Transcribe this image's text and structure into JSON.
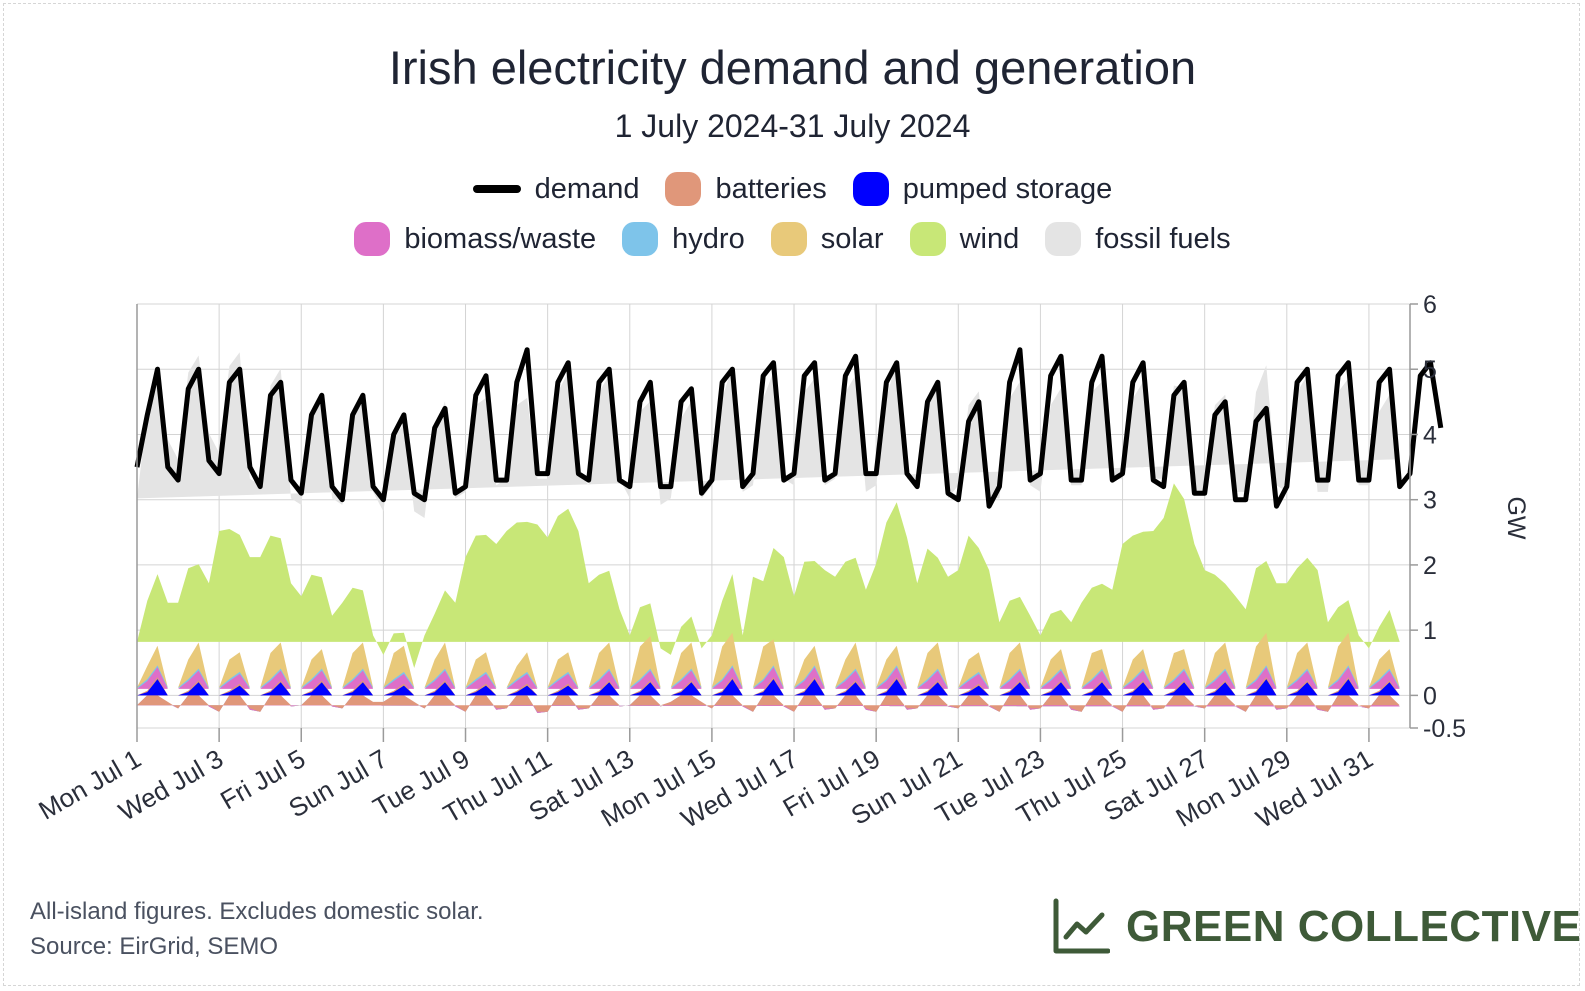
{
  "header": {
    "title": "Irish electricity demand and generation",
    "subtitle": "1 July 2024-31 July 2024"
  },
  "legend": [
    {
      "label": "demand",
      "color": "#000000",
      "kind": "line"
    },
    {
      "label": "batteries",
      "color": "#e0977a",
      "kind": "area"
    },
    {
      "label": "pumped storage",
      "color": "#0000ff",
      "kind": "area"
    },
    {
      "label": "biomass/waste",
      "color": "#de6fc8",
      "kind": "area"
    },
    {
      "label": "hydro",
      "color": "#7ec4ea",
      "kind": "area"
    },
    {
      "label": "solar",
      "color": "#e8c97a",
      "kind": "area"
    },
    {
      "label": "wind",
      "color": "#c8e777",
      "kind": "area"
    },
    {
      "label": "fossil fuels",
      "color": "#e4e4e4",
      "kind": "area"
    }
  ],
  "footer": {
    "note": "All-island figures. Excludes domestic solar.",
    "source": "Source: EirGrid, SEMO",
    "brand": "GREEN COLLECTIVE",
    "brand_icon": "line-chart-icon",
    "brand_color": "#3e5a38"
  },
  "chart_data": {
    "type": "area",
    "xlabel": "",
    "ylabel": "GW",
    "ylim": [
      -0.5,
      6
    ],
    "yticks": [
      -0.5,
      0,
      1,
      2,
      3,
      4,
      5,
      6
    ],
    "y_axis_side": "right",
    "grid": true,
    "legend_position": "top-center",
    "x_range": [
      "2024-07-01",
      "2024-08-01"
    ],
    "x_ticks": [
      {
        "date": "2024-07-01",
        "label": "Mon Jul 1"
      },
      {
        "date": "2024-07-03",
        "label": "Wed Jul 3"
      },
      {
        "date": "2024-07-05",
        "label": "Fri Jul 5"
      },
      {
        "date": "2024-07-07",
        "label": "Sun Jul 7"
      },
      {
        "date": "2024-07-09",
        "label": "Tue Jul 9"
      },
      {
        "date": "2024-07-11",
        "label": "Thu Jul 11"
      },
      {
        "date": "2024-07-13",
        "label": "Sat Jul 13"
      },
      {
        "date": "2024-07-15",
        "label": "Mon Jul 15"
      },
      {
        "date": "2024-07-17",
        "label": "Wed Jul 17"
      },
      {
        "date": "2024-07-19",
        "label": "Fri Jul 19"
      },
      {
        "date": "2024-07-21",
        "label": "Sun Jul 21"
      },
      {
        "date": "2024-07-23",
        "label": "Tue Jul 23"
      },
      {
        "date": "2024-07-25",
        "label": "Thu Jul 25"
      },
      {
        "date": "2024-07-27",
        "label": "Sat Jul 27"
      },
      {
        "date": "2024-07-29",
        "label": "Mon Jul 29"
      },
      {
        "date": "2024-07-31",
        "label": "Wed Jul 31"
      }
    ],
    "time_step": "6h",
    "series": [
      {
        "name": "demand",
        "values": [
          3.5,
          4.3,
          5.0,
          3.5,
          3.3,
          4.7,
          5.0,
          3.6,
          3.4,
          4.8,
          5.0,
          3.5,
          3.2,
          4.6,
          4.8,
          3.3,
          3.1,
          4.3,
          4.6,
          3.2,
          3.0,
          4.3,
          4.6,
          3.2,
          3.0,
          4.0,
          4.3,
          3.1,
          3.0,
          4.1,
          4.4,
          3.1,
          3.2,
          4.6,
          4.9,
          3.3,
          3.3,
          4.8,
          5.3,
          3.4,
          3.4,
          4.8,
          5.1,
          3.4,
          3.3,
          4.8,
          5.0,
          3.3,
          3.2,
          4.5,
          4.8,
          3.2,
          3.2,
          4.5,
          4.7,
          3.1,
          3.3,
          4.8,
          5.0,
          3.2,
          3.4,
          4.9,
          5.1,
          3.3,
          3.4,
          4.9,
          5.1,
          3.3,
          3.4,
          4.9,
          5.2,
          3.4,
          3.4,
          4.8,
          5.1,
          3.4,
          3.2,
          4.5,
          4.8,
          3.1,
          3.0,
          4.2,
          4.5,
          2.9,
          3.2,
          4.8,
          5.3,
          3.3,
          3.4,
          4.9,
          5.2,
          3.3,
          3.3,
          4.8,
          5.2,
          3.3,
          3.4,
          4.8,
          5.1,
          3.3,
          3.2,
          4.6,
          4.8,
          3.1,
          3.1,
          4.3,
          4.5,
          3.0,
          3.0,
          4.2,
          4.4,
          2.9,
          3.2,
          4.8,
          5.0,
          3.3,
          3.3,
          4.9,
          5.1,
          3.3,
          3.3,
          4.8,
          5.0,
          3.2,
          3.4,
          4.9,
          5.1,
          4.1
        ]
      },
      {
        "name": "fossil fuels",
        "values": [
          2.2,
          2.9,
          3.2,
          2.5,
          2.2,
          3.0,
          3.2,
          2.3,
          1.2,
          2.5,
          2.8,
          1.2,
          1.1,
          2.3,
          2.6,
          1.3,
          1.4,
          2.4,
          2.7,
          1.8,
          1.5,
          2.6,
          2.9,
          2.2,
          2.2,
          3.0,
          3.2,
          2.4,
          1.8,
          2.8,
          2.9,
          1.6,
          1.0,
          2.0,
          2.1,
          0.9,
          0.8,
          1.8,
          1.9,
          0.7,
          0.9,
          1.9,
          2.1,
          0.9,
          1.5,
          2.8,
          3.0,
          2.0,
          2.1,
          3.0,
          3.1,
          2.2,
          2.4,
          3.2,
          3.3,
          2.3,
          2.3,
          3.1,
          3.2,
          2.2,
          1.4,
          2.8,
          2.7,
          1.2,
          1.7,
          2.6,
          2.8,
          1.3,
          1.5,
          2.6,
          2.8,
          1.5,
          1.2,
          1.9,
          2.2,
          0.9,
          1.5,
          2.3,
          2.6,
          1.2,
          1.3,
          2.0,
          2.4,
          1.1,
          1.9,
          3.1,
          3.3,
          2.0,
          2.2,
          3.2,
          3.4,
          2.1,
          1.8,
          3.0,
          3.1,
          1.7,
          1.0,
          2.1,
          2.3,
          0.8,
          0.6,
          1.5,
          1.7,
          0.8,
          1.2,
          2.6,
          2.9,
          1.6,
          1.8,
          2.7,
          3.0,
          1.5,
          1.4,
          2.7,
          2.8,
          1.2,
          2.0,
          3.3,
          3.4,
          2.3,
          2.5,
          3.3,
          3.3,
          2.8
        ]
      },
      {
        "name": "wind",
        "values": [
          0.7,
          1.0,
          1.1,
          1.3,
          1.3,
          1.4,
          1.2,
          1.6,
          2.4,
          2.0,
          1.8,
          2.0,
          2.0,
          1.8,
          1.6,
          1.6,
          1.4,
          1.3,
          1.1,
          1.1,
          1.3,
          1.0,
          0.8,
          0.8,
          0.5,
          0.3,
          0.2,
          0.3,
          0.8,
          0.7,
          0.8,
          1.3,
          2.0,
          1.9,
          1.8,
          2.2,
          2.4,
          2.2,
          2.0,
          2.5,
          2.3,
          2.2,
          2.2,
          2.4,
          1.6,
          1.2,
          1.1,
          1.2,
          0.8,
          0.6,
          0.5,
          0.6,
          0.5,
          0.4,
          0.4,
          0.6,
          0.8,
          0.7,
          0.9,
          0.8,
          1.7,
          1.0,
          1.4,
          2.0,
          1.4,
          1.5,
          1.3,
          1.8,
          1.7,
          1.5,
          1.3,
          1.5,
          1.9,
          2.1,
          2.2,
          2.3,
          1.6,
          1.6,
          1.3,
          1.7,
          1.8,
          1.9,
          1.6,
          1.8,
          1.0,
          0.8,
          0.7,
          1.1,
          0.8,
          0.7,
          0.6,
          1.0,
          1.3,
          1.0,
          1.0,
          1.5,
          2.2,
          1.9,
          1.8,
          2.4,
          2.6,
          2.6,
          2.3,
          2.2,
          1.8,
          1.2,
          0.9,
          1.4,
          1.2,
          1.2,
          1.1,
          1.6,
          1.6,
          1.3,
          1.3,
          1.8,
          1.0,
          0.6,
          0.5,
          0.8,
          0.6,
          0.5,
          0.6,
          0.7
        ]
      },
      {
        "name": "solar",
        "values": [
          0.0,
          0.2,
          0.3,
          0.0,
          0.0,
          0.3,
          0.4,
          0.0,
          0.0,
          0.3,
          0.3,
          0.0,
          0.0,
          0.4,
          0.4,
          0.0,
          0.0,
          0.3,
          0.3,
          0.0,
          0.0,
          0.4,
          0.4,
          0.0,
          0.0,
          0.4,
          0.4,
          0.0,
          0.0,
          0.3,
          0.4,
          0.0,
          0.0,
          0.3,
          0.3,
          0.0,
          0.0,
          0.2,
          0.3,
          0.0,
          0.0,
          0.3,
          0.3,
          0.0,
          0.0,
          0.4,
          0.4,
          0.0,
          0.0,
          0.5,
          0.5,
          0.0,
          0.0,
          0.4,
          0.4,
          0.0,
          0.0,
          0.5,
          0.5,
          0.0,
          0.0,
          0.5,
          0.4,
          0.0,
          0.0,
          0.3,
          0.3,
          0.0,
          0.0,
          0.3,
          0.4,
          0.0,
          0.0,
          0.3,
          0.3,
          0.0,
          0.0,
          0.4,
          0.4,
          0.0,
          0.0,
          0.3,
          0.3,
          0.0,
          0.0,
          0.4,
          0.4,
          0.0,
          0.0,
          0.3,
          0.3,
          0.0,
          0.0,
          0.4,
          0.3,
          0.0,
          0.0,
          0.3,
          0.3,
          0.0,
          0.0,
          0.4,
          0.3,
          0.0,
          0.0,
          0.4,
          0.4,
          0.0,
          0.0,
          0.5,
          0.5,
          0.0,
          0.0,
          0.4,
          0.4,
          0.0,
          0.0,
          0.5,
          0.5,
          0.0,
          0.0,
          0.3,
          0.3,
          0.0
        ]
      },
      {
        "name": "hydro",
        "values": [
          0.02,
          0.03,
          0.03,
          0.02,
          0.02,
          0.03,
          0.03,
          0.02,
          0.02,
          0.03,
          0.03,
          0.02,
          0.02,
          0.03,
          0.03,
          0.02,
          0.02,
          0.03,
          0.03,
          0.02,
          0.02,
          0.03,
          0.03,
          0.02,
          0.02,
          0.03,
          0.03,
          0.02,
          0.02,
          0.03,
          0.03,
          0.02,
          0.02,
          0.03,
          0.03,
          0.02,
          0.02,
          0.03,
          0.03,
          0.02,
          0.02,
          0.03,
          0.03,
          0.02,
          0.02,
          0.03,
          0.03,
          0.02,
          0.02,
          0.03,
          0.03,
          0.02,
          0.02,
          0.03,
          0.03,
          0.02,
          0.02,
          0.03,
          0.03,
          0.02,
          0.02,
          0.03,
          0.03,
          0.02,
          0.02,
          0.03,
          0.03,
          0.02,
          0.02,
          0.03,
          0.03,
          0.02,
          0.02,
          0.03,
          0.03,
          0.02,
          0.02,
          0.03,
          0.03,
          0.02,
          0.02,
          0.03,
          0.03,
          0.02,
          0.02,
          0.03,
          0.03,
          0.02,
          0.02,
          0.03,
          0.03,
          0.02,
          0.02,
          0.03,
          0.03,
          0.02,
          0.02,
          0.03,
          0.03,
          0.02,
          0.02,
          0.03,
          0.03,
          0.02,
          0.02,
          0.03,
          0.03,
          0.02,
          0.02,
          0.03,
          0.03,
          0.02,
          0.02,
          0.03,
          0.03,
          0.02,
          0.02,
          0.03,
          0.03,
          0.02,
          0.02,
          0.03,
          0.03,
          0.02
        ]
      },
      {
        "name": "biomass/waste",
        "values": [
          0.1,
          0.15,
          0.15,
          0.1,
          0.1,
          0.15,
          0.15,
          0.1,
          0.1,
          0.15,
          0.15,
          0.1,
          0.1,
          0.15,
          0.15,
          0.1,
          0.1,
          0.15,
          0.15,
          0.1,
          0.1,
          0.15,
          0.15,
          0.1,
          0.1,
          0.15,
          0.15,
          0.1,
          0.1,
          0.15,
          0.15,
          0.1,
          0.1,
          0.15,
          0.15,
          0.1,
          0.1,
          0.15,
          0.15,
          0.1,
          0.1,
          0.15,
          0.15,
          0.1,
          0.1,
          0.15,
          0.15,
          0.1,
          0.1,
          0.15,
          0.15,
          0.1,
          0.1,
          0.15,
          0.15,
          0.1,
          0.1,
          0.15,
          0.15,
          0.1,
          0.1,
          0.15,
          0.15,
          0.1,
          0.1,
          0.15,
          0.15,
          0.1,
          0.1,
          0.15,
          0.15,
          0.1,
          0.1,
          0.15,
          0.15,
          0.1,
          0.1,
          0.15,
          0.15,
          0.1,
          0.1,
          0.15,
          0.15,
          0.1,
          0.1,
          0.15,
          0.15,
          0.1,
          0.1,
          0.15,
          0.15,
          0.1,
          0.1,
          0.15,
          0.15,
          0.1,
          0.1,
          0.15,
          0.15,
          0.1,
          0.1,
          0.15,
          0.15,
          0.1,
          0.1,
          0.15,
          0.15,
          0.1,
          0.1,
          0.15,
          0.15,
          0.1,
          0.1,
          0.15,
          0.15,
          0.1,
          0.1,
          0.15,
          0.15,
          0.1,
          0.1,
          0.15,
          0.15,
          0.1
        ]
      },
      {
        "name": "pumped storage",
        "values": [
          -0.15,
          0.05,
          0.25,
          -0.1,
          -0.2,
          0.05,
          0.2,
          -0.15,
          -0.25,
          0.05,
          0.15,
          -0.2,
          -0.25,
          0.05,
          0.2,
          -0.15,
          -0.15,
          0.05,
          0.2,
          -0.15,
          -0.2,
          0.05,
          0.2,
          -0.1,
          -0.1,
          0.05,
          0.15,
          -0.1,
          -0.2,
          0.05,
          0.2,
          -0.15,
          -0.25,
          0.05,
          0.15,
          -0.2,
          -0.2,
          0.05,
          0.15,
          -0.25,
          -0.25,
          0.05,
          0.15,
          -0.2,
          -0.2,
          0.05,
          0.2,
          -0.15,
          -0.15,
          0.05,
          0.2,
          -0.15,
          -0.1,
          0.05,
          0.2,
          -0.1,
          -0.2,
          0.05,
          0.25,
          -0.15,
          -0.25,
          0.05,
          0.25,
          -0.15,
          -0.25,
          0.05,
          0.25,
          -0.2,
          -0.2,
          0.05,
          0.2,
          -0.2,
          -0.25,
          0.05,
          0.25,
          -0.2,
          -0.2,
          0.05,
          0.2,
          -0.15,
          -0.2,
          0.05,
          0.15,
          -0.15,
          -0.25,
          0.05,
          0.2,
          -0.2,
          -0.2,
          0.05,
          0.2,
          -0.2,
          -0.25,
          0.05,
          0.2,
          -0.15,
          -0.25,
          0.05,
          0.2,
          -0.2,
          -0.2,
          0.05,
          0.2,
          -0.15,
          -0.2,
          0.05,
          0.2,
          -0.15,
          -0.25,
          0.05,
          0.25,
          -0.2,
          -0.2,
          0.05,
          0.2,
          -0.2,
          -0.25,
          0.05,
          0.25,
          -0.15,
          -0.2,
          0.05,
          0.2,
          -0.15
        ]
      },
      {
        "name": "batteries",
        "values": [
          0.0,
          0.02,
          0.03,
          -0.02,
          0.0,
          0.02,
          0.03,
          -0.02,
          0.0,
          0.02,
          0.03,
          -0.02,
          0.0,
          0.02,
          0.03,
          -0.02,
          0.0,
          0.02,
          0.03,
          -0.02,
          0.0,
          0.02,
          0.03,
          -0.02,
          0.0,
          0.02,
          0.03,
          -0.02,
          0.0,
          0.02,
          0.03,
          -0.02,
          0.0,
          0.02,
          0.03,
          -0.02,
          0.0,
          0.02,
          0.03,
          -0.02,
          0.0,
          0.02,
          0.03,
          -0.02,
          0.0,
          0.02,
          0.03,
          -0.02,
          0.0,
          0.02,
          0.03,
          -0.02,
          0.0,
          0.02,
          0.03,
          -0.02,
          0.0,
          0.02,
          0.03,
          -0.02,
          0.0,
          0.02,
          0.03,
          -0.02,
          0.0,
          0.02,
          0.03,
          -0.02,
          0.0,
          0.02,
          0.03,
          -0.02,
          0.0,
          0.02,
          0.03,
          -0.02,
          0.0,
          0.02,
          0.03,
          -0.02,
          0.0,
          0.02,
          0.03,
          -0.02,
          0.0,
          0.02,
          0.03,
          -0.02,
          0.0,
          0.02,
          0.03,
          -0.02,
          0.0,
          0.02,
          0.03,
          -0.02,
          0.0,
          0.02,
          0.03,
          -0.02,
          0.0,
          0.02,
          0.03,
          -0.02,
          0.0,
          0.02,
          0.03,
          -0.02,
          0.0,
          0.02,
          0.03,
          -0.02,
          0.0,
          0.02,
          0.03,
          -0.02,
          0.0,
          0.02,
          0.03,
          -0.02,
          0.0,
          0.02,
          0.03,
          -0.02
        ]
      }
    ]
  }
}
